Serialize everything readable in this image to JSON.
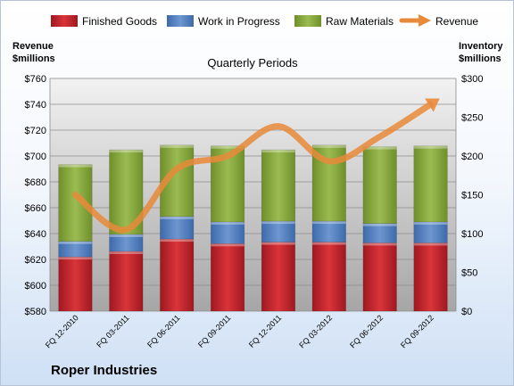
{
  "chart_data": {
    "type": "bar",
    "subtitle": "Quarterly Periods",
    "company": "Roper Industries",
    "categories": [
      "FQ 12-2010",
      "FQ 03-2011",
      "FQ 06-2011",
      "FQ 09-2011",
      "FQ 12-2011",
      "FQ 03-2012",
      "FQ 06-2012",
      "FQ 09-2012"
    ],
    "left_axis": {
      "title_line1": "Revenue",
      "title_line2": "$millions",
      "min": 580,
      "max": 760,
      "step": 20,
      "tick_prefix": "$"
    },
    "right_axis": {
      "title_line1": "Inventory",
      "title_line2": "$millions",
      "min": 0,
      "max": 300,
      "step": 50,
      "tick_prefix": "$"
    },
    "stack_series": [
      {
        "name": "Finished Goods",
        "color": "#c0272d",
        "values": [
          70,
          77,
          93,
          87,
          89,
          89,
          88,
          88
        ]
      },
      {
        "name": "Work in Progress",
        "color": "#4f7bbd",
        "values": [
          20,
          22,
          29,
          28,
          27,
          27,
          25,
          27
        ]
      },
      {
        "name": "Raw Materials",
        "color": "#8aab3e",
        "values": [
          99,
          109,
          92,
          98,
          92,
          98,
          99,
          98
        ]
      }
    ],
    "line_series": {
      "name": "Revenue",
      "color": "#e98a3a",
      "values": [
        670,
        643,
        690,
        700,
        723,
        696,
        715,
        740
      ]
    },
    "grid": true,
    "legend_position": "top"
  }
}
